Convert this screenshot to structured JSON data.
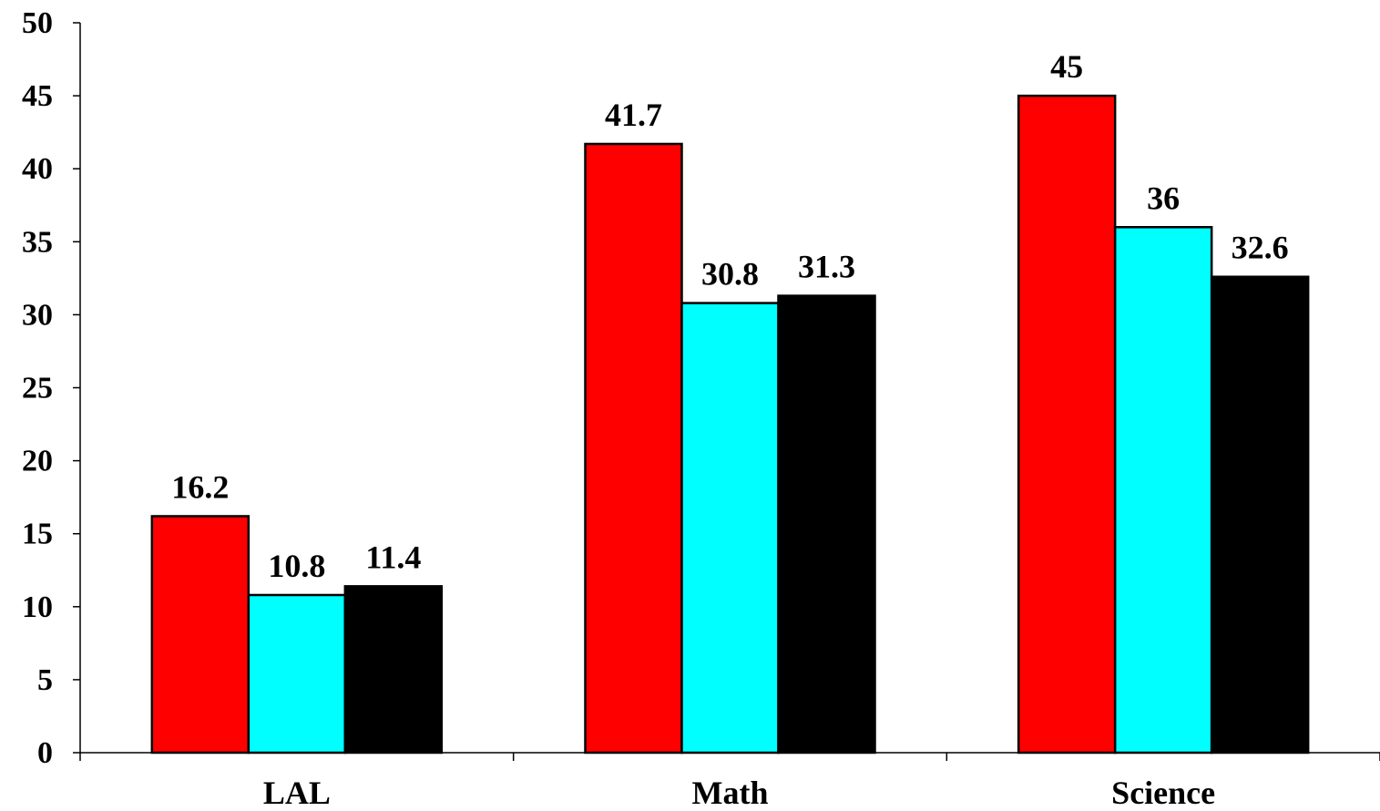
{
  "chart_data": {
    "type": "bar",
    "categories": [
      "LAL",
      "Math",
      "Science"
    ],
    "series": [
      {
        "values": [
          16.2,
          41.7,
          45
        ],
        "color": "#ff0000"
      },
      {
        "values": [
          10.8,
          30.8,
          36
        ],
        "color": "#00ffff"
      },
      {
        "values": [
          11.4,
          31.3,
          32.6
        ],
        "color": "#000000"
      }
    ],
    "data_labels": [
      [
        "16.2",
        "41.7",
        "45"
      ],
      [
        "10.8",
        "30.8",
        "36"
      ],
      [
        "11.4",
        "31.3",
        "32.6"
      ]
    ],
    "y_ticks": [
      "0",
      "5",
      "10",
      "15",
      "20",
      "25",
      "30",
      "35",
      "40",
      "45",
      "50"
    ],
    "ylim": [
      0,
      50
    ],
    "title": "",
    "xlabel": "",
    "ylabel": "",
    "grid": false,
    "legend": "none"
  }
}
